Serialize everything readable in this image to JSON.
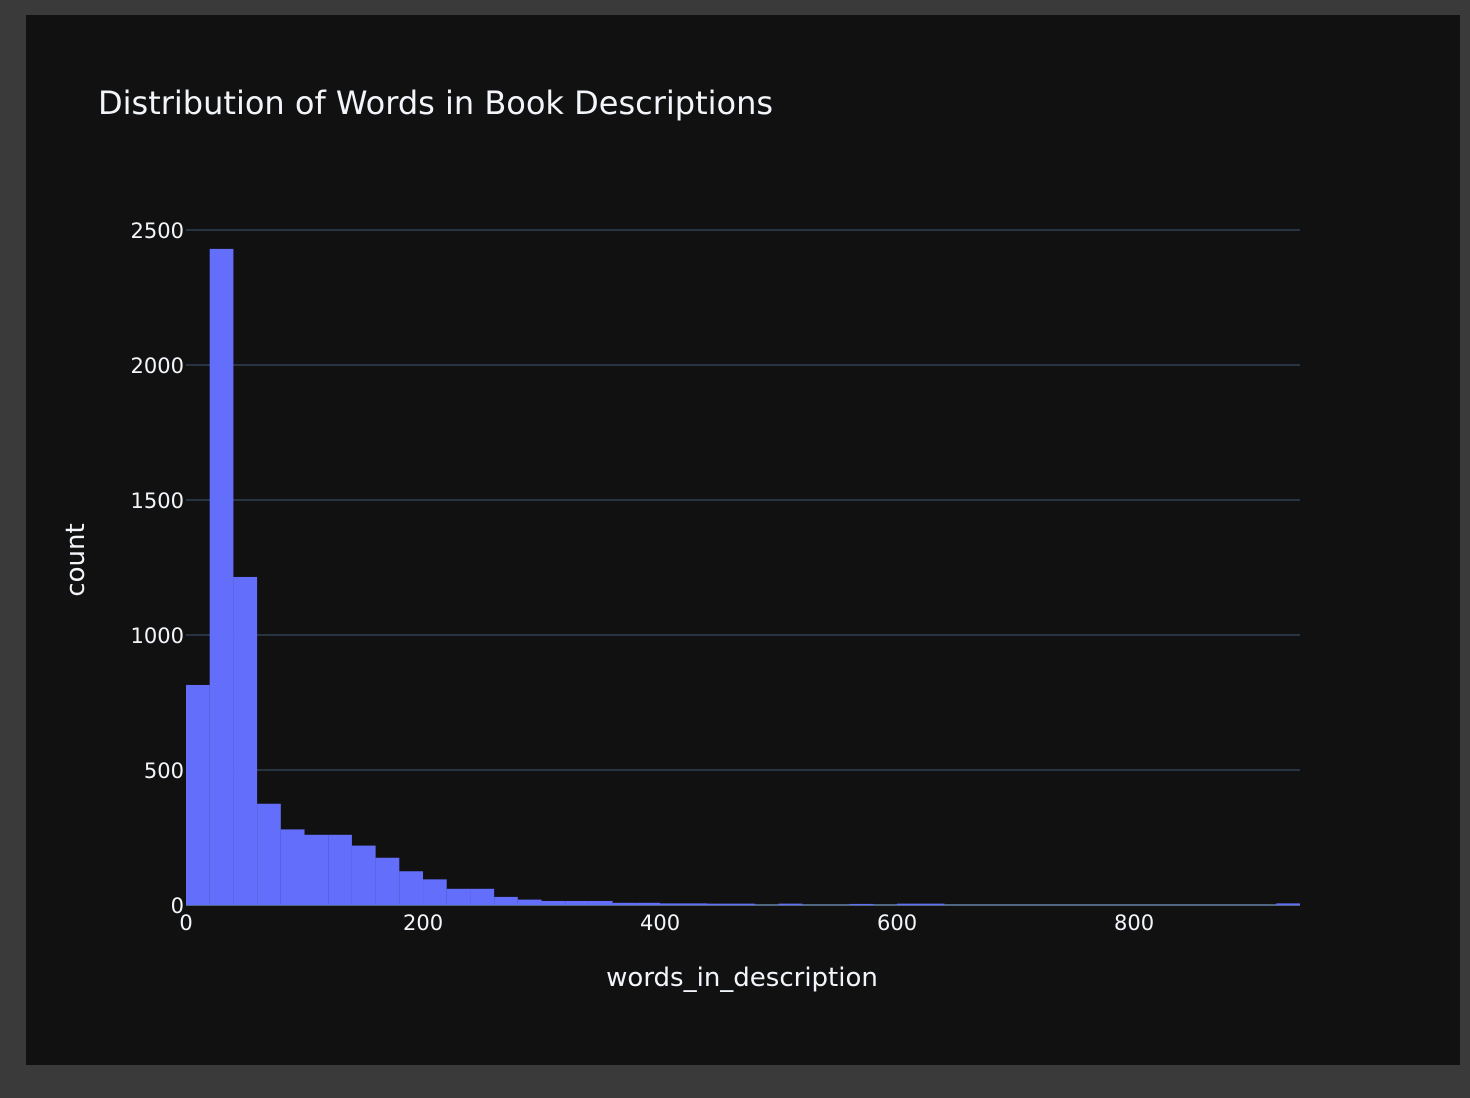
{
  "chart_data": {
    "type": "bar",
    "title": "Distribution of Words in Book Descriptions",
    "xlabel": "words_in_description",
    "ylabel": "count",
    "xlim": [
      0,
      940
    ],
    "ylim": [
      0,
      2500
    ],
    "x_ticks": [
      0,
      200,
      400,
      600,
      800
    ],
    "y_ticks": [
      0,
      500,
      1000,
      1500,
      2000,
      2500
    ],
    "x_tick_labels": [
      "0",
      "200",
      "400",
      "600",
      "800"
    ],
    "y_tick_labels": [
      "0",
      "500",
      "1000",
      "1500",
      "2000",
      "2500"
    ],
    "grid": true,
    "bin_width": 20,
    "bins": [
      {
        "x0": 0,
        "x1": 20,
        "count": 815
      },
      {
        "x0": 20,
        "x1": 40,
        "count": 2430
      },
      {
        "x0": 40,
        "x1": 60,
        "count": 1215
      },
      {
        "x0": 60,
        "x1": 80,
        "count": 375
      },
      {
        "x0": 80,
        "x1": 100,
        "count": 280
      },
      {
        "x0": 100,
        "x1": 120,
        "count": 260
      },
      {
        "x0": 120,
        "x1": 140,
        "count": 260
      },
      {
        "x0": 140,
        "x1": 160,
        "count": 220
      },
      {
        "x0": 160,
        "x1": 180,
        "count": 175
      },
      {
        "x0": 180,
        "x1": 200,
        "count": 125
      },
      {
        "x0": 200,
        "x1": 220,
        "count": 95
      },
      {
        "x0": 220,
        "x1": 240,
        "count": 60
      },
      {
        "x0": 240,
        "x1": 260,
        "count": 60
      },
      {
        "x0": 260,
        "x1": 280,
        "count": 30
      },
      {
        "x0": 280,
        "x1": 300,
        "count": 20
      },
      {
        "x0": 300,
        "x1": 320,
        "count": 15
      },
      {
        "x0": 320,
        "x1": 340,
        "count": 15
      },
      {
        "x0": 340,
        "x1": 360,
        "count": 15
      },
      {
        "x0": 360,
        "x1": 380,
        "count": 8
      },
      {
        "x0": 380,
        "x1": 400,
        "count": 8
      },
      {
        "x0": 400,
        "x1": 420,
        "count": 6
      },
      {
        "x0": 420,
        "x1": 440,
        "count": 6
      },
      {
        "x0": 440,
        "x1": 460,
        "count": 5
      },
      {
        "x0": 460,
        "x1": 480,
        "count": 5
      },
      {
        "x0": 500,
        "x1": 520,
        "count": 5
      },
      {
        "x0": 560,
        "x1": 580,
        "count": 4
      },
      {
        "x0": 600,
        "x1": 620,
        "count": 5
      },
      {
        "x0": 620,
        "x1": 640,
        "count": 5
      },
      {
        "x0": 920,
        "x1": 940,
        "count": 6
      }
    ],
    "bar_color": "#636efa"
  },
  "theme": {
    "paper_bg": "#111111",
    "outer_bg": "#3a3a3a",
    "text_color": "#f2f5fa",
    "grid_color": "#283442"
  }
}
